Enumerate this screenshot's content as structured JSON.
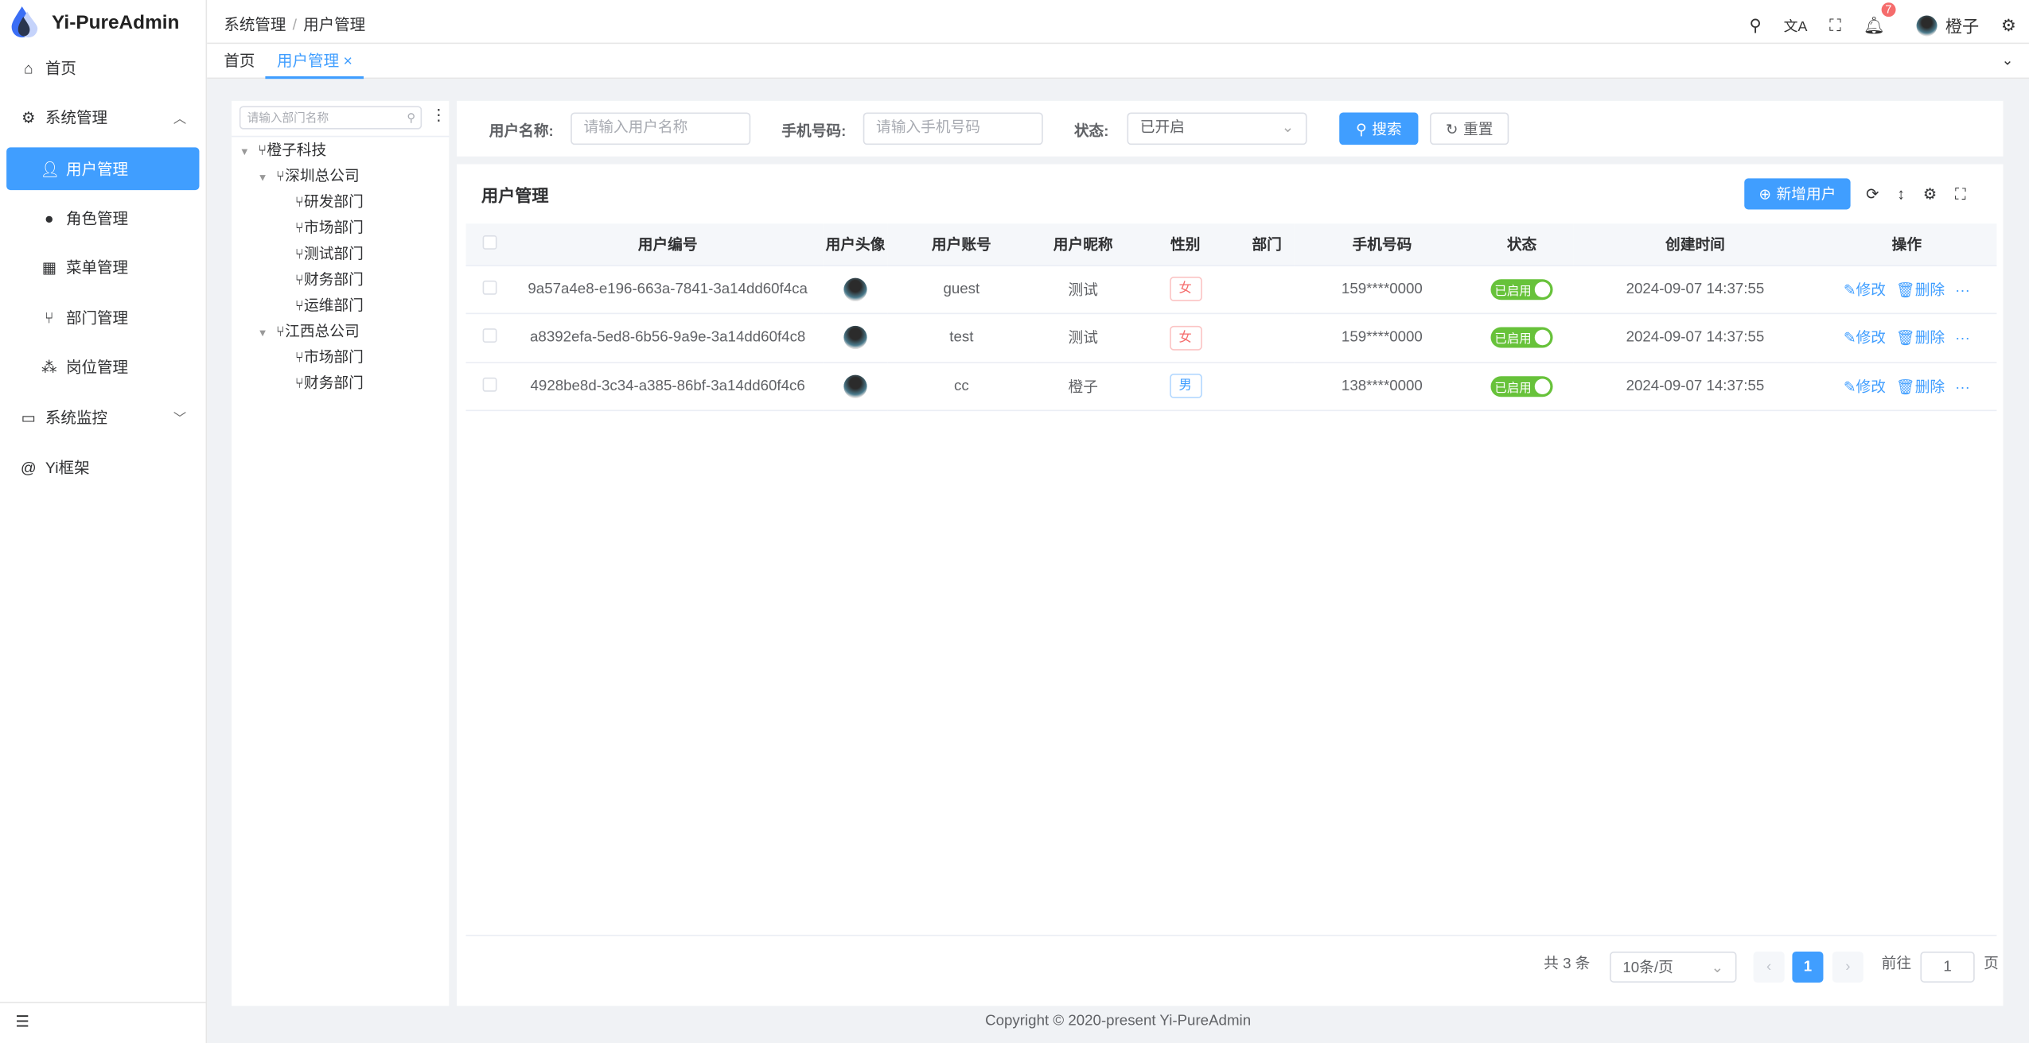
{
  "app": {
    "title": "Yi-PureAdmin"
  },
  "sidebar": {
    "items": [
      {
        "label": "首页",
        "icon": "home-icon"
      },
      {
        "label": "系统管理",
        "icon": "gear-icon"
      },
      {
        "label": "用户管理",
        "icon": "user-icon",
        "active": true
      },
      {
        "label": "角色管理",
        "icon": "role-icon"
      },
      {
        "label": "菜单管理",
        "icon": "menu-grid-icon"
      },
      {
        "label": "部门管理",
        "icon": "branch-icon"
      },
      {
        "label": "岗位管理",
        "icon": "org-icon"
      },
      {
        "label": "系统监控",
        "icon": "monitor-icon"
      },
      {
        "label": "Yi框架",
        "icon": "at-icon"
      }
    ]
  },
  "header": {
    "breadcrumb": [
      "系统管理",
      "用户管理"
    ],
    "breadcrumb_sep": "/",
    "notification_count": "7",
    "user_name": "橙子"
  },
  "tabs": [
    {
      "label": "首页"
    },
    {
      "label": "用户管理",
      "active": true
    }
  ],
  "tree": {
    "search_placeholder": "请输入部门名称",
    "nodes": [
      "橙子科技",
      "深圳总公司",
      "研发部门",
      "市场部门",
      "测试部门",
      "财务部门",
      "运维部门",
      "江西总公司",
      "市场部门",
      "财务部门"
    ]
  },
  "search": {
    "username_label": "用户名称:",
    "username_placeholder": "请输入用户名称",
    "phone_label": "手机号码:",
    "phone_placeholder": "请输入手机号码",
    "status_label": "状态:",
    "status_value": "已开启",
    "search_label": "搜索",
    "reset_label": "重置"
  },
  "table": {
    "title": "用户管理",
    "add_label": "新增用户",
    "columns": [
      "用户编号",
      "用户头像",
      "用户账号",
      "用户昵称",
      "性别",
      "部门",
      "手机号码",
      "状态",
      "创建时间",
      "操作"
    ],
    "rows": [
      {
        "id": "9a57a4e8-e196-663a-7841-3a14dd60f4ca",
        "account": "guest",
        "nickname": "测试",
        "gender": "女",
        "dept": "",
        "phone": "159****0000",
        "status": "已启用",
        "created": "2024-09-07 14:37:55"
      },
      {
        "id": "a8392efa-5ed8-6b56-9a9e-3a14dd60f4c8",
        "account": "test",
        "nickname": "测试",
        "gender": "女",
        "dept": "",
        "phone": "159****0000",
        "status": "已启用",
        "created": "2024-09-07 14:37:55"
      },
      {
        "id": "4928be8d-3c34-a385-86bf-3a14dd60f4c6",
        "account": "cc",
        "nickname": "橙子",
        "gender": "男",
        "dept": "",
        "phone": "138****0000",
        "status": "已启用",
        "created": "2024-09-07 14:37:55"
      }
    ],
    "edit_label": "修改",
    "delete_label": "删除",
    "more_label": "···"
  },
  "pagination": {
    "total": "共 3 条",
    "page_size": "10条/页",
    "current": "1",
    "goto_label": "前往",
    "goto_value": "1",
    "page_suffix": "页"
  },
  "footer": {
    "copyright": "Copyright © 2020-present Yi-PureAdmin"
  },
  "colors": {
    "primary": "#409eff",
    "success": "#67c23a",
    "danger": "#f56c6c"
  }
}
